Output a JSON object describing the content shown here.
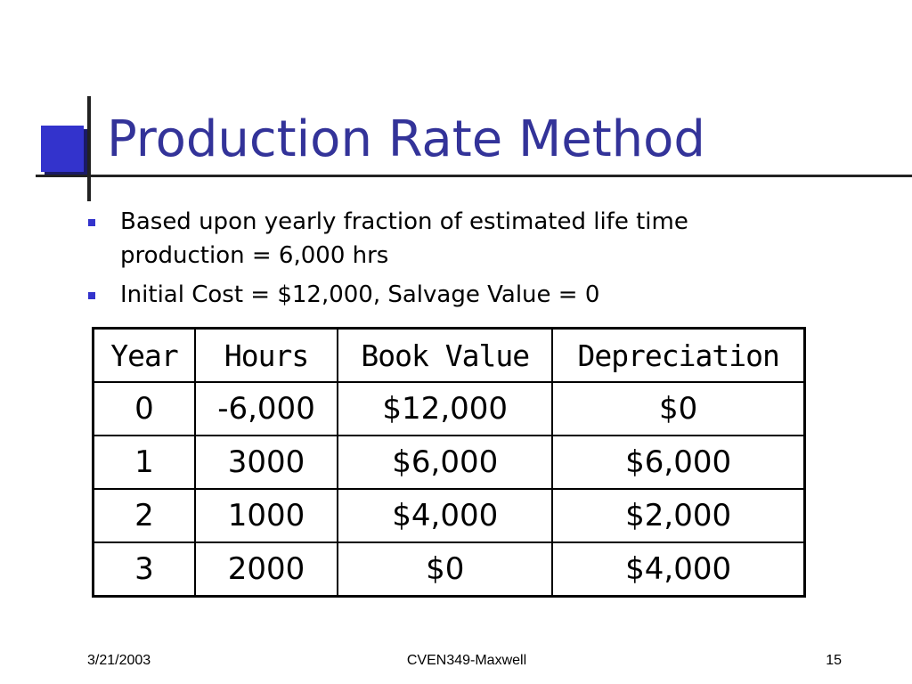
{
  "slide": {
    "title": "Production Rate Method",
    "bullets": [
      {
        "lines": [
          "Based upon yearly fraction of estimated life time",
          "production = 6,000 hrs"
        ]
      },
      {
        "lines": [
          "Initial Cost = $12,000, Salvage Value = 0"
        ]
      }
    ],
    "table": {
      "headers": [
        "Year",
        "Hours",
        "Book Value",
        "Depreciation"
      ],
      "rows": [
        [
          "0",
          "-6,000",
          "$12,000",
          "$0"
        ],
        [
          "1",
          "3000",
          "$6,000",
          "$6,000"
        ],
        [
          "2",
          "1000",
          "$4,000",
          "$2,000"
        ],
        [
          "3",
          "2000",
          "$0",
          "$4,000"
        ]
      ]
    },
    "footer": {
      "date": "3/21/2003",
      "center": "CVEN349-Maxwell",
      "page": "15"
    },
    "colors": {
      "title": "#333399",
      "accent": "#3333cc"
    }
  }
}
